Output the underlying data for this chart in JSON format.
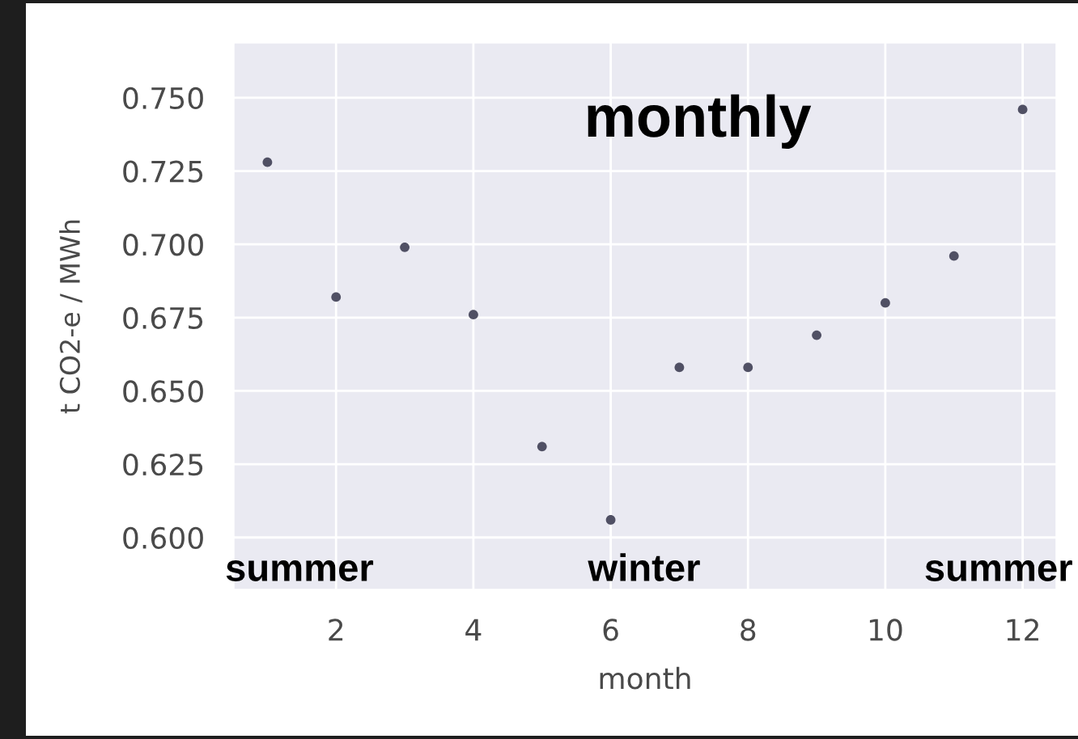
{
  "chart_data": {
    "type": "scatter",
    "title": "monthly",
    "xlabel": "month",
    "ylabel": "t CO2-e / MWh",
    "x": [
      1,
      2,
      3,
      4,
      5,
      6,
      7,
      8,
      9,
      10,
      11,
      12
    ],
    "values": [
      0.728,
      0.682,
      0.699,
      0.676,
      0.631,
      0.606,
      0.658,
      0.658,
      0.669,
      0.68,
      0.696,
      0.746
    ],
    "color": "#505064",
    "marker": "circle",
    "xlim": [
      0.5,
      12.5
    ],
    "ylim": [
      0.582,
      0.769
    ],
    "xticks": [
      2,
      4,
      6,
      8,
      10,
      12
    ],
    "yticks": [
      {
        "value": 0.6,
        "label": "0.600"
      },
      0.625,
      {
        "value": 0.65,
        "label": "0.650"
      },
      0.675,
      {
        "value": 0.7,
        "label": "0.700"
      },
      0.725,
      {
        "value": 0.75,
        "label": "0.750"
      }
    ],
    "grid": true,
    "annotations": [
      "summer",
      "winter",
      "summer"
    ]
  }
}
